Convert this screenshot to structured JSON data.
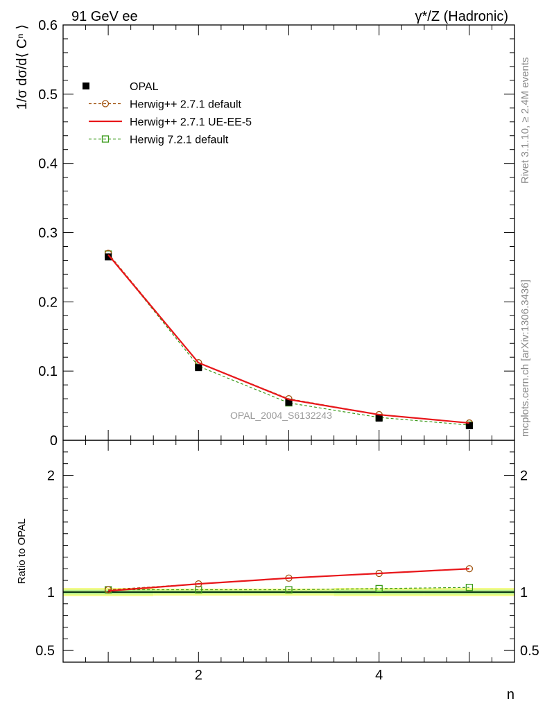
{
  "header": {
    "left": "91 GeV ee",
    "right": "γ*/Z (Hadronic)"
  },
  "side_text": {
    "rivet": "Rivet 3.1.10, ≥ 2.4M events",
    "mcplots": "mcplots.cern.ch [arXiv:1306.3436]"
  },
  "analysis_label": "OPAL_2004_S6132243",
  "colors": {
    "opal": "#000000",
    "herwigpp_default": "#a0520d",
    "herwigpp_ueee5": "#e8161a",
    "herwig721": "#3a9a1a",
    "band_yellow": "#f4fb86",
    "band_green": "#b6ef8a",
    "ratio_line": "#1a9a3a"
  },
  "chart_data": [
    {
      "type": "line",
      "panel": "main",
      "ylabel": "1/σ dσ/d⟨ Cⁿ ⟩",
      "xlabel": "",
      "ylim": [
        0,
        0.6
      ],
      "xlim": [
        0.5,
        5.5
      ],
      "yticks": [
        0,
        0.1,
        0.2,
        0.3,
        0.4,
        0.5,
        0.6
      ],
      "ytick_labels": [
        "0",
        "0.1",
        "0.2",
        "0.3",
        "0.4",
        "0.5",
        "0.6"
      ],
      "x": [
        1,
        2,
        3,
        4,
        5
      ],
      "legend_position": "top-left",
      "series": [
        {
          "name": "OPAL",
          "style": "data",
          "values": [
            0.265,
            0.105,
            0.055,
            0.032,
            0.021
          ]
        },
        {
          "name": "Herwig++ 2.7.1 default",
          "style": "dashed-circle",
          "values": [
            0.27,
            0.112,
            0.06,
            0.037,
            0.025
          ]
        },
        {
          "name": "Herwig++ 2.7.1 UE-EE-5",
          "style": "solid",
          "values": [
            0.268,
            0.112,
            0.059,
            0.037,
            0.025
          ]
        },
        {
          "name": "Herwig 7.2.1 default",
          "style": "dashed-square",
          "values": [
            0.269,
            0.107,
            0.054,
            0.033,
            0.022
          ]
        }
      ]
    },
    {
      "type": "line",
      "panel": "ratio",
      "ylabel": "Ratio to OPAL",
      "xlabel": "n",
      "ylim": [
        0.4,
        2.3
      ],
      "xlim": [
        0.5,
        5.5
      ],
      "yticks": [
        0.5,
        1,
        2
      ],
      "ytick_labels": [
        "0.5",
        "1",
        "2"
      ],
      "xticks": [
        2,
        4
      ],
      "xtick_labels": [
        "2",
        "4"
      ],
      "x": [
        1,
        2,
        3,
        4,
        5
      ],
      "band_outer": [
        0.035,
        0.03,
        0.03,
        0.035,
        0.035
      ],
      "band_inner": [
        0.02,
        0.015,
        0.015,
        0.02,
        0.02
      ],
      "series": [
        {
          "name": "Herwig++ 2.7.1 default",
          "style": "dashed-circle",
          "values": [
            1.02,
            1.07,
            1.12,
            1.16,
            1.2
          ]
        },
        {
          "name": "Herwig++ 2.7.1 UE-EE-5",
          "style": "solid",
          "values": [
            1.01,
            1.07,
            1.12,
            1.16,
            1.2
          ]
        },
        {
          "name": "Herwig 7.2.1 default",
          "style": "dashed-square",
          "values": [
            1.02,
            1.02,
            1.02,
            1.03,
            1.04
          ]
        }
      ]
    }
  ]
}
